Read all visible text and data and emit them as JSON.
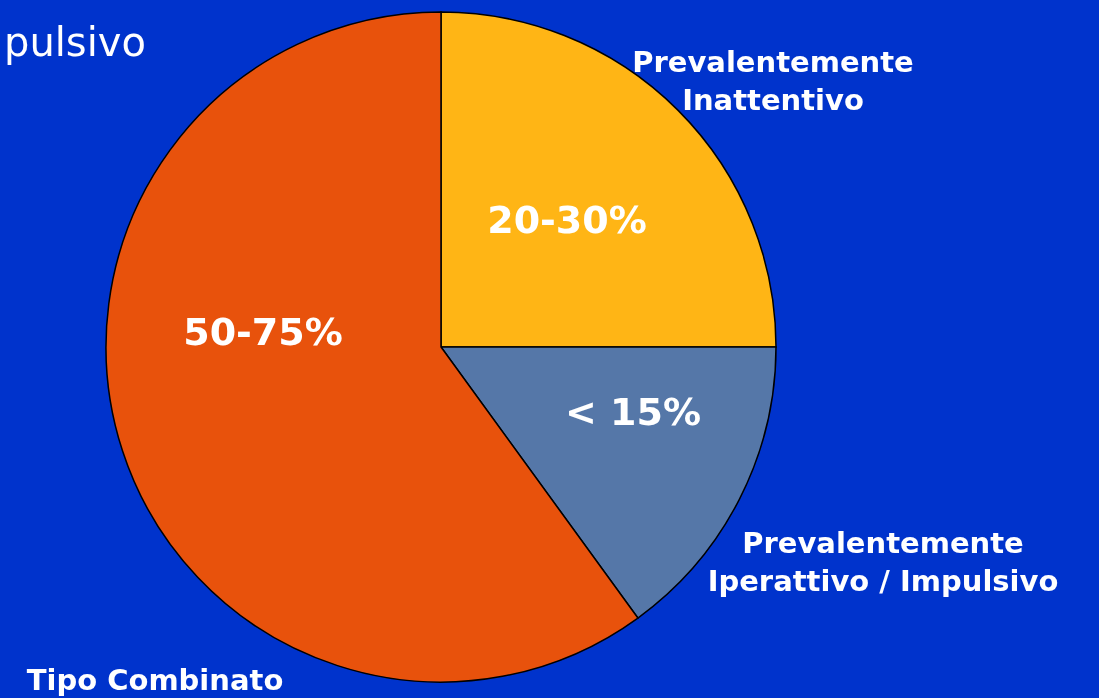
{
  "chart_data": {
    "type": "pie",
    "annotations": [
      "pulsivo",
      "20-30%",
      "< 15%",
      "50-75%"
    ],
    "categories": [
      "Prevalentemente Inattentivo",
      "Prevalentemente Iperattivo / Impulsivo",
      "Tipo Combinato"
    ],
    "values": [
      25,
      15,
      60
    ],
    "colors": [
      "#ffb515",
      "#5577a8",
      "#e8520c"
    ]
  }
}
